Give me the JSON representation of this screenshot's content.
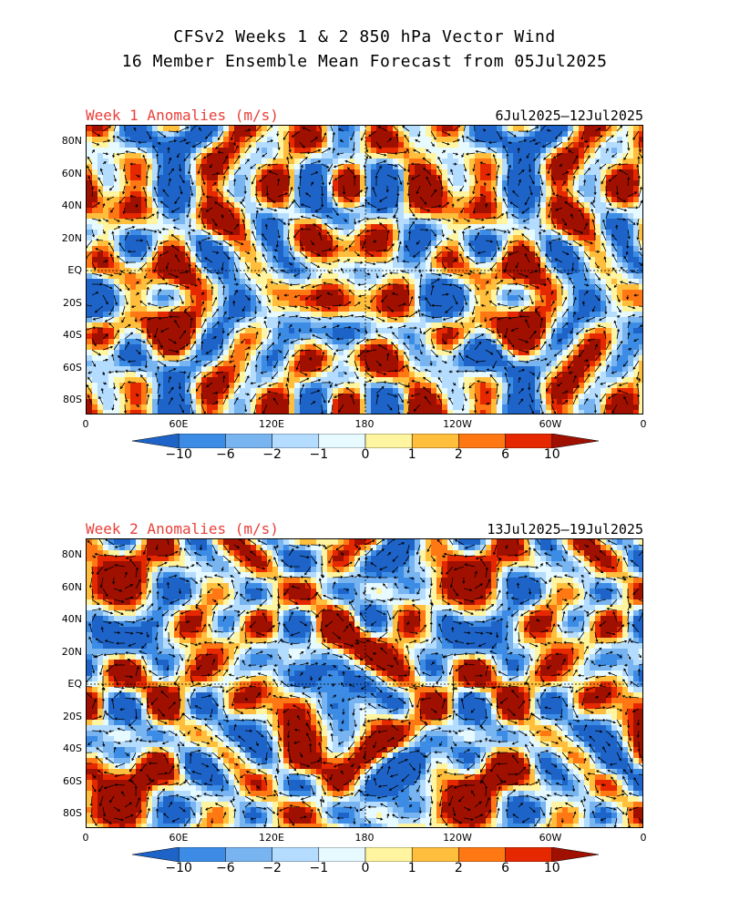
{
  "header": {
    "title_line1": "CFSv2 Weeks 1 & 2 850 hPa Vector Wind",
    "title_line2": "16 Member Ensemble Mean Forecast from 05Jul2025"
  },
  "panels": [
    {
      "label": "Week 1 Anomalies (m/s)",
      "dates": "6Jul2025—12Jul2025"
    },
    {
      "label": "Week 2 Anomalies (m/s)",
      "dates": "13Jul2025—19Jul2025"
    }
  ],
  "axes": {
    "lat_labels": [
      "80N",
      "60N",
      "40N",
      "20N",
      "EQ",
      "20S",
      "40S",
      "60S",
      "80S"
    ],
    "lon_labels": [
      "0",
      "60E",
      "120E",
      "180",
      "120W",
      "60W",
      "0"
    ]
  },
  "colorbar": {
    "labels": [
      "−10",
      "−6",
      "−2",
      "−1",
      "0",
      "1",
      "2",
      "6",
      "10"
    ],
    "colors": [
      "#1e64c8",
      "#3c8ce6",
      "#78b4f0",
      "#b4dcff",
      "#e6faff",
      "#fff5a0",
      "#ffbe3c",
      "#ff7814",
      "#e62800",
      "#a01000"
    ]
  },
  "chart_data": {
    "type": "heatmap",
    "variable": "850 hPa vector wind anomalies",
    "units": "m/s",
    "levels": [
      -10,
      -6,
      -2,
      -1,
      0,
      1,
      2,
      6,
      10
    ],
    "lat_range": [
      -90,
      90
    ],
    "lon_range": [
      0,
      360
    ]
  }
}
